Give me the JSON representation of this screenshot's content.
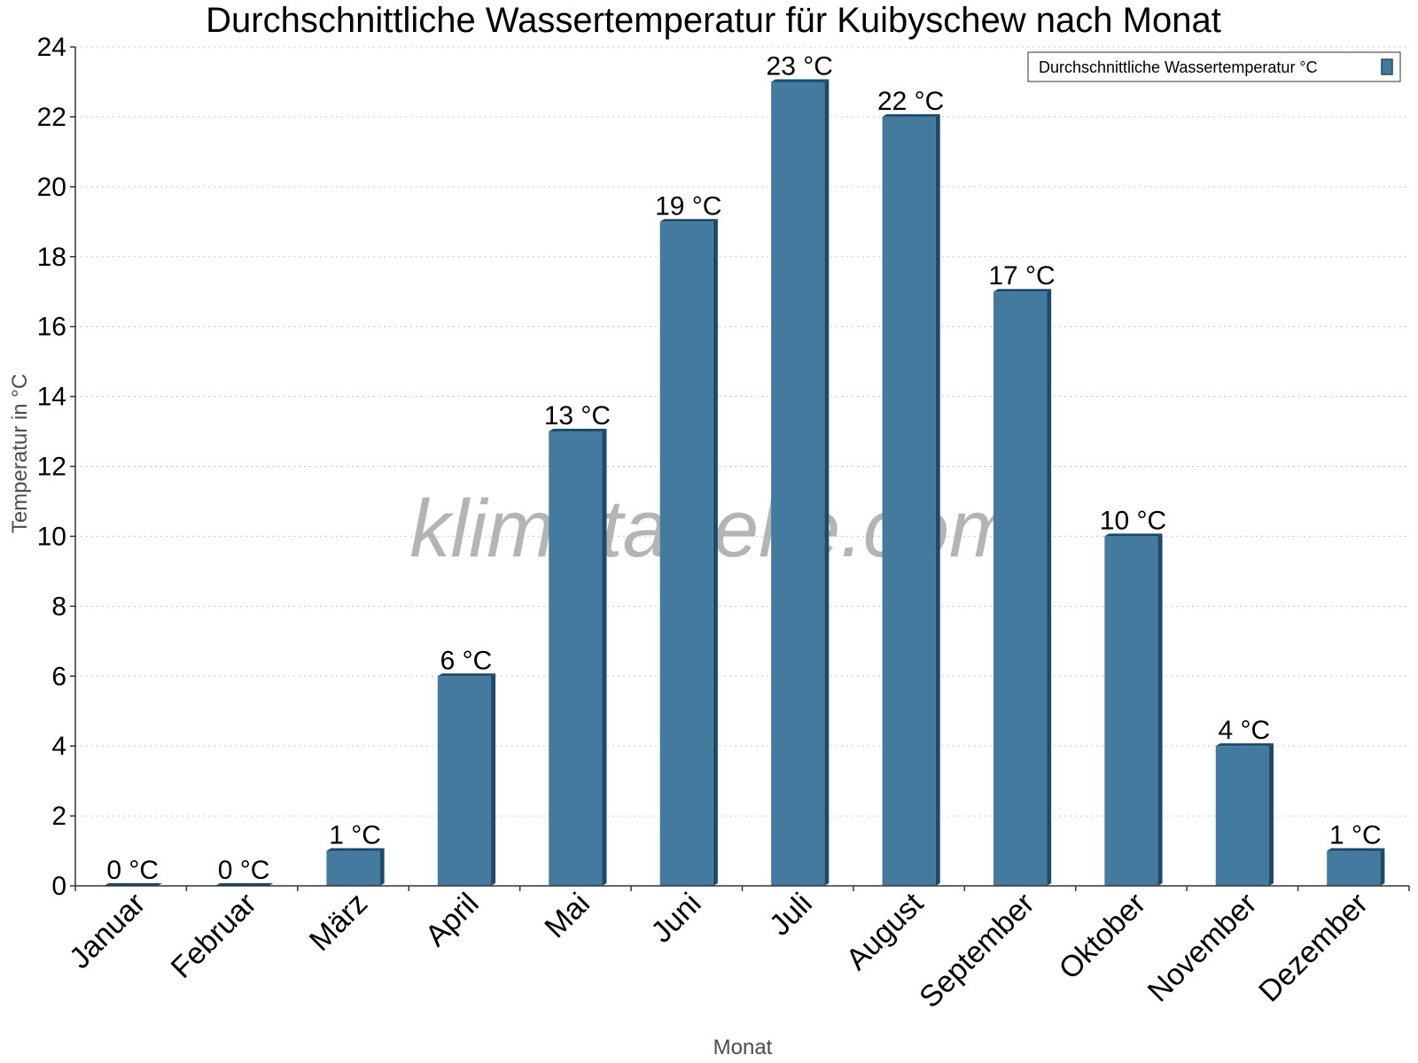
{
  "chart_data": {
    "type": "bar",
    "title": "Durchschnittliche Wassertemperatur für Kuibyschew nach Monat",
    "xlabel": "Monat",
    "ylabel": "Temperatur in °C",
    "categories": [
      "Januar",
      "Februar",
      "März",
      "April",
      "Mai",
      "Juni",
      "Juli",
      "August",
      "September",
      "Oktober",
      "November",
      "Dezember"
    ],
    "series": [
      {
        "name": "Durchschnittliche Wassertemperatur °C",
        "values": [
          0,
          0,
          1,
          6,
          13,
          19,
          23,
          22,
          17,
          10,
          4,
          1
        ],
        "labels": [
          "0 °C",
          "0 °C",
          "1 °C",
          "6 °C",
          "13 °C",
          "19 °C",
          "23 °C",
          "22 °C",
          "17 °C",
          "10 °C",
          "4 °C",
          "1 °C"
        ]
      }
    ],
    "ylim": [
      0,
      24
    ],
    "yticks": [
      0,
      2,
      4,
      6,
      8,
      10,
      12,
      14,
      16,
      18,
      20,
      22,
      24
    ],
    "grid": true,
    "legend_position": "top-right",
    "bar_color": "#447a9e",
    "bar_edge_color": "#1b4a6b",
    "watermark": "klimatabelle.com"
  }
}
